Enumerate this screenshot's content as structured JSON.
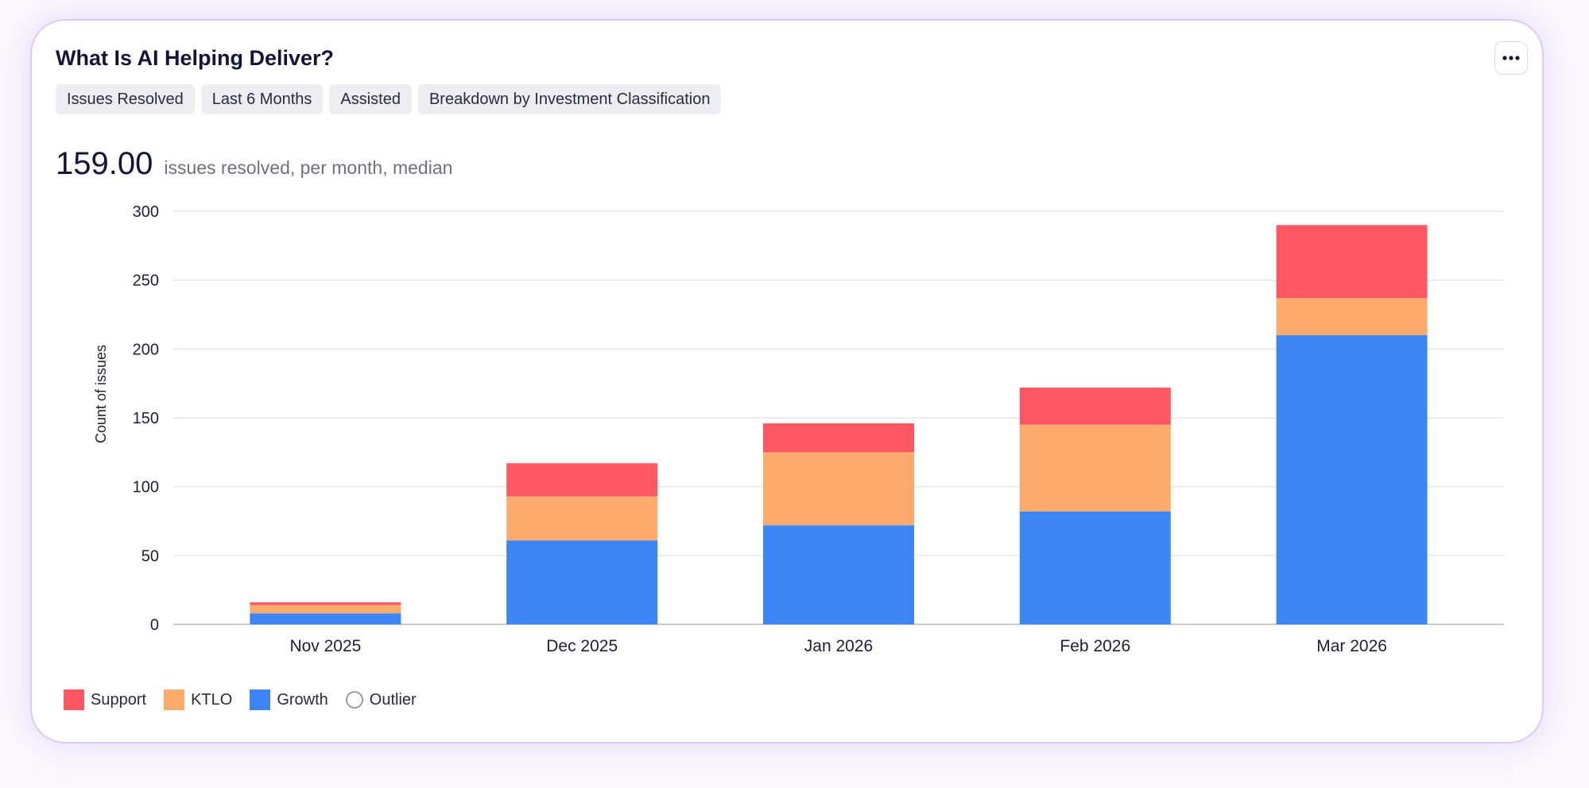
{
  "card": {
    "title": "What Is AI Helping Deliver?",
    "chips": [
      "Issues Resolved",
      "Last 6 Months",
      "Assisted",
      "Breakdown by Investment Classification"
    ]
  },
  "metric": {
    "value": "159.00",
    "description": "issues resolved, per month, median"
  },
  "menu_icon": "more-horizontal-icon",
  "chart_data": {
    "type": "bar",
    "stacked": true,
    "categories": [
      "Nov 2025",
      "Dec 2025",
      "Jan 2026",
      "Feb 2026",
      "Mar 2026"
    ],
    "series": [
      {
        "name": "Growth",
        "color": "#3d84f5",
        "values": [
          8,
          61,
          72,
          82,
          210
        ]
      },
      {
        "name": "KTLO",
        "color": "#fdab6d",
        "values": [
          6,
          32,
          53,
          63,
          27
        ]
      },
      {
        "name": "Support",
        "color": "#ff5664",
        "values": [
          2,
          24,
          21,
          27,
          53
        ]
      }
    ],
    "ylabel": "Count of issues",
    "xlabel": "",
    "ylim": [
      0,
      300
    ],
    "yticks": [
      0,
      50,
      100,
      150,
      200,
      250,
      300
    ],
    "grid": true,
    "legend_position": "bottom-left"
  },
  "legend": [
    {
      "label": "Support",
      "color": "#ff5664",
      "kind": "swatch"
    },
    {
      "label": "KTLO",
      "color": "#fdab6d",
      "kind": "swatch"
    },
    {
      "label": "Growth",
      "color": "#3d84f5",
      "kind": "swatch"
    },
    {
      "label": "Outlier",
      "color": "#9b9bac",
      "kind": "ring"
    }
  ]
}
